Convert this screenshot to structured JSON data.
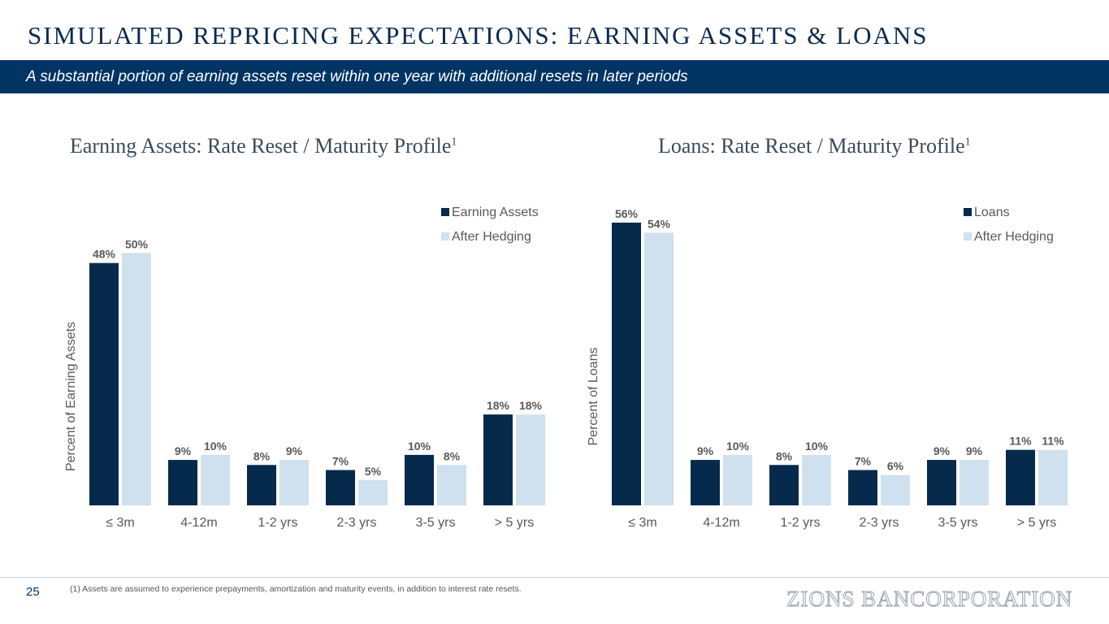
{
  "header": {
    "title": "SIMULATED REPRICING EXPECTATIONS: EARNING ASSETS & LOANS",
    "subtitle": "A substantial portion of earning assets reset within one year with additional resets in later periods"
  },
  "colors": {
    "primary_bar": "#062a4c",
    "hedged_bar": "#cfe0ee",
    "band": "#003463"
  },
  "chart_data": [
    {
      "type": "bar",
      "title": "Earning Assets: Rate Reset / Maturity Profile",
      "title_sup": "1",
      "ylabel": "Percent of Earning Assets",
      "categories": [
        "≤ 3m",
        "4-12m",
        "1-2 yrs",
        "2-3 yrs",
        "3-5 yrs",
        "> 5 yrs"
      ],
      "series": [
        {
          "name": "Earning Assets",
          "values": [
            48,
            9,
            8,
            7,
            10,
            18
          ],
          "labels": [
            "48%",
            "9%",
            "8%",
            "7%",
            "10%",
            "18%"
          ]
        },
        {
          "name": "After Hedging",
          "values": [
            50,
            10,
            9,
            5,
            8,
            18
          ],
          "labels": [
            "50%",
            "10%",
            "9%",
            "5%",
            "8%",
            "18%"
          ]
        }
      ],
      "ylim": [
        0,
        56
      ],
      "grid": false,
      "legend": "top-right"
    },
    {
      "type": "bar",
      "title": "Loans: Rate Reset / Maturity Profile",
      "title_sup": "1",
      "ylabel": "Percent of Loans",
      "categories": [
        "≤ 3m",
        "4-12m",
        "1-2 yrs",
        "2-3 yrs",
        "3-5 yrs",
        "> 5 yrs"
      ],
      "series": [
        {
          "name": "Loans",
          "values": [
            56,
            9,
            8,
            7,
            9,
            11
          ],
          "labels": [
            "56%",
            "9%",
            "8%",
            "7%",
            "9%",
            "11%"
          ]
        },
        {
          "name": "After Hedging",
          "values": [
            54,
            10,
            10,
            6,
            9,
            11
          ],
          "labels": [
            "54%",
            "10%",
            "10%",
            "6%",
            "9%",
            "11%"
          ]
        }
      ],
      "ylim": [
        0,
        56
      ],
      "grid": false,
      "legend": "top-right"
    }
  ],
  "footer": {
    "page_number": "25",
    "footnote": "(1)  Assets are assumed to experience prepayments, amortization and maturity events, in addition to interest rate resets.",
    "logo_text": "ZIONS BANCORPORATION"
  }
}
